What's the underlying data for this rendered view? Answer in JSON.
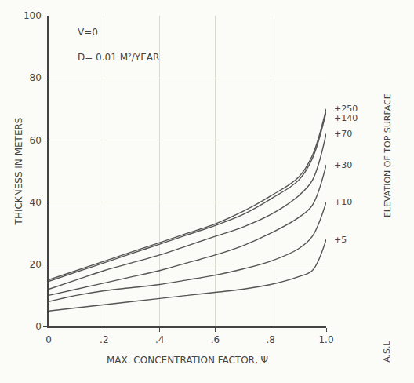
{
  "chart_data": {
    "type": "line",
    "xlabel": "MAX. CONCENTRATION FACTOR, Ψ",
    "ylabel": "THICKNESS IN METERS",
    "y2label": "ELEVATION OF TOP SURFACE",
    "annotations": [
      "V=0",
      "D= 0.01 M²/YEAR",
      "A.S.L"
    ],
    "x": [
      0,
      0.1,
      0.2,
      0.3,
      0.4,
      0.5,
      0.6,
      0.7,
      0.8,
      0.9,
      0.95,
      1.0
    ],
    "series": [
      {
        "name": "+250",
        "color": "#555555",
        "values": [
          15,
          18,
          21,
          24,
          27,
          30,
          33,
          37,
          42,
          48,
          55,
          70
        ]
      },
      {
        "name": "+140",
        "color": "#555555",
        "values": [
          14.5,
          17.5,
          20.5,
          23.5,
          26.5,
          29.5,
          32.5,
          36,
          41,
          47,
          54,
          69
        ]
      },
      {
        "name": "+70",
        "color": "#555555",
        "values": [
          12,
          15,
          18,
          20.5,
          23,
          26,
          29,
          32,
          36,
          42,
          47,
          62
        ]
      },
      {
        "name": "+30",
        "color": "#555555",
        "values": [
          10,
          12,
          14,
          16,
          18,
          20.5,
          23,
          26,
          30,
          35,
          39,
          52
        ]
      },
      {
        "name": "+10",
        "color": "#555555",
        "values": [
          8,
          10,
          11.5,
          12.5,
          13.5,
          15,
          16.5,
          18.5,
          21,
          25,
          29,
          40
        ]
      },
      {
        "name": "+5",
        "color": "#555555",
        "values": [
          5,
          6,
          7,
          8,
          9,
          10,
          11,
          12,
          13.5,
          16,
          18,
          28
        ]
      }
    ],
    "xlim": [
      0,
      1.0
    ],
    "ylim": [
      0,
      100
    ],
    "xticks": [
      0,
      {
        "value": 0.2,
        "label": ".2"
      },
      {
        "value": 0.4,
        "label": ".4"
      },
      {
        "value": 0.6,
        "label": ".6"
      },
      {
        "value": 0.8,
        "label": ".8"
      },
      {
        "value": 1.0,
        "label": "1.0"
      }
    ],
    "yticks": [
      0,
      20,
      40,
      60,
      80,
      100
    ],
    "grid": true
  }
}
